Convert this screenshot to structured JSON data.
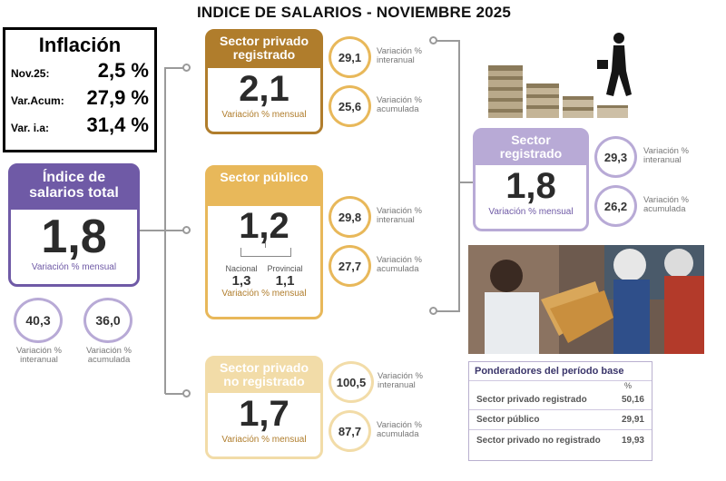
{
  "title": "INDICE DE SALARIOS - NOVIEMBRE 2025",
  "inflation": {
    "heading": "Inflación",
    "rows": [
      {
        "label": "Nov.25:",
        "value": "2,5 %"
      },
      {
        "label": "Var.Acum:",
        "value": "27,9 %"
      },
      {
        "label": "Var. i.a:",
        "value": "31,4 %"
      }
    ]
  },
  "total": {
    "heading": "Índice de salarios total",
    "value": "1,8",
    "sub": "Variación % mensual",
    "interanual": "40,3",
    "interanual_label": "Variación % interanual",
    "acumulada": "36,0",
    "acumulada_label": "Variación % acumulada"
  },
  "privado_registrado": {
    "heading": "Sector privado registrado",
    "value": "2,1",
    "sub": "Variación % mensual",
    "interanual": "29,1",
    "interanual_label": "Variación % interanual",
    "acumulada": "25,6",
    "acumulada_label": "Variación % acumulada"
  },
  "publico": {
    "heading": "Sector público",
    "value": "1,2",
    "nacional_label": "Nacional",
    "nacional_value": "1,3",
    "provincial_label": "Provincial",
    "provincial_value": "1,1",
    "sub": "Variación % mensual",
    "interanual": "29,8",
    "interanual_label": "Variación % interanual",
    "acumulada": "27,7",
    "acumulada_label": "Variación % acumulada"
  },
  "no_registrado": {
    "heading": "Sector privado no registrado",
    "value": "1,7",
    "sub": "Variación % mensual",
    "interanual": "100,5",
    "interanual_label": "Variación % interanual",
    "acumulada": "87,7",
    "acumulada_label": "Variación % acumulada"
  },
  "registrado": {
    "heading": "Sector registrado",
    "value": "1,8",
    "sub": "Variación % mensual",
    "interanual": "29,3",
    "interanual_label": "Variación % interanual",
    "acumulada": "26,2",
    "acumulada_label": "Variación % acumulada"
  },
  "ponderadores": {
    "heading": "Ponderadores del período base",
    "pct": "%",
    "rows": [
      {
        "label": "Sector privado registrado",
        "value": "50,16"
      },
      {
        "label": "Sector público",
        "value": "29,91"
      },
      {
        "label": "Sector privado no registrado",
        "value": "19,93"
      }
    ]
  },
  "colors": {
    "purple": "#6f5aa6",
    "purple_light": "#b8aad6",
    "brown": "#b07d2c",
    "gold": "#e8b85a",
    "gold_light": "#f2dca8",
    "cream": "#f6e6bf"
  }
}
